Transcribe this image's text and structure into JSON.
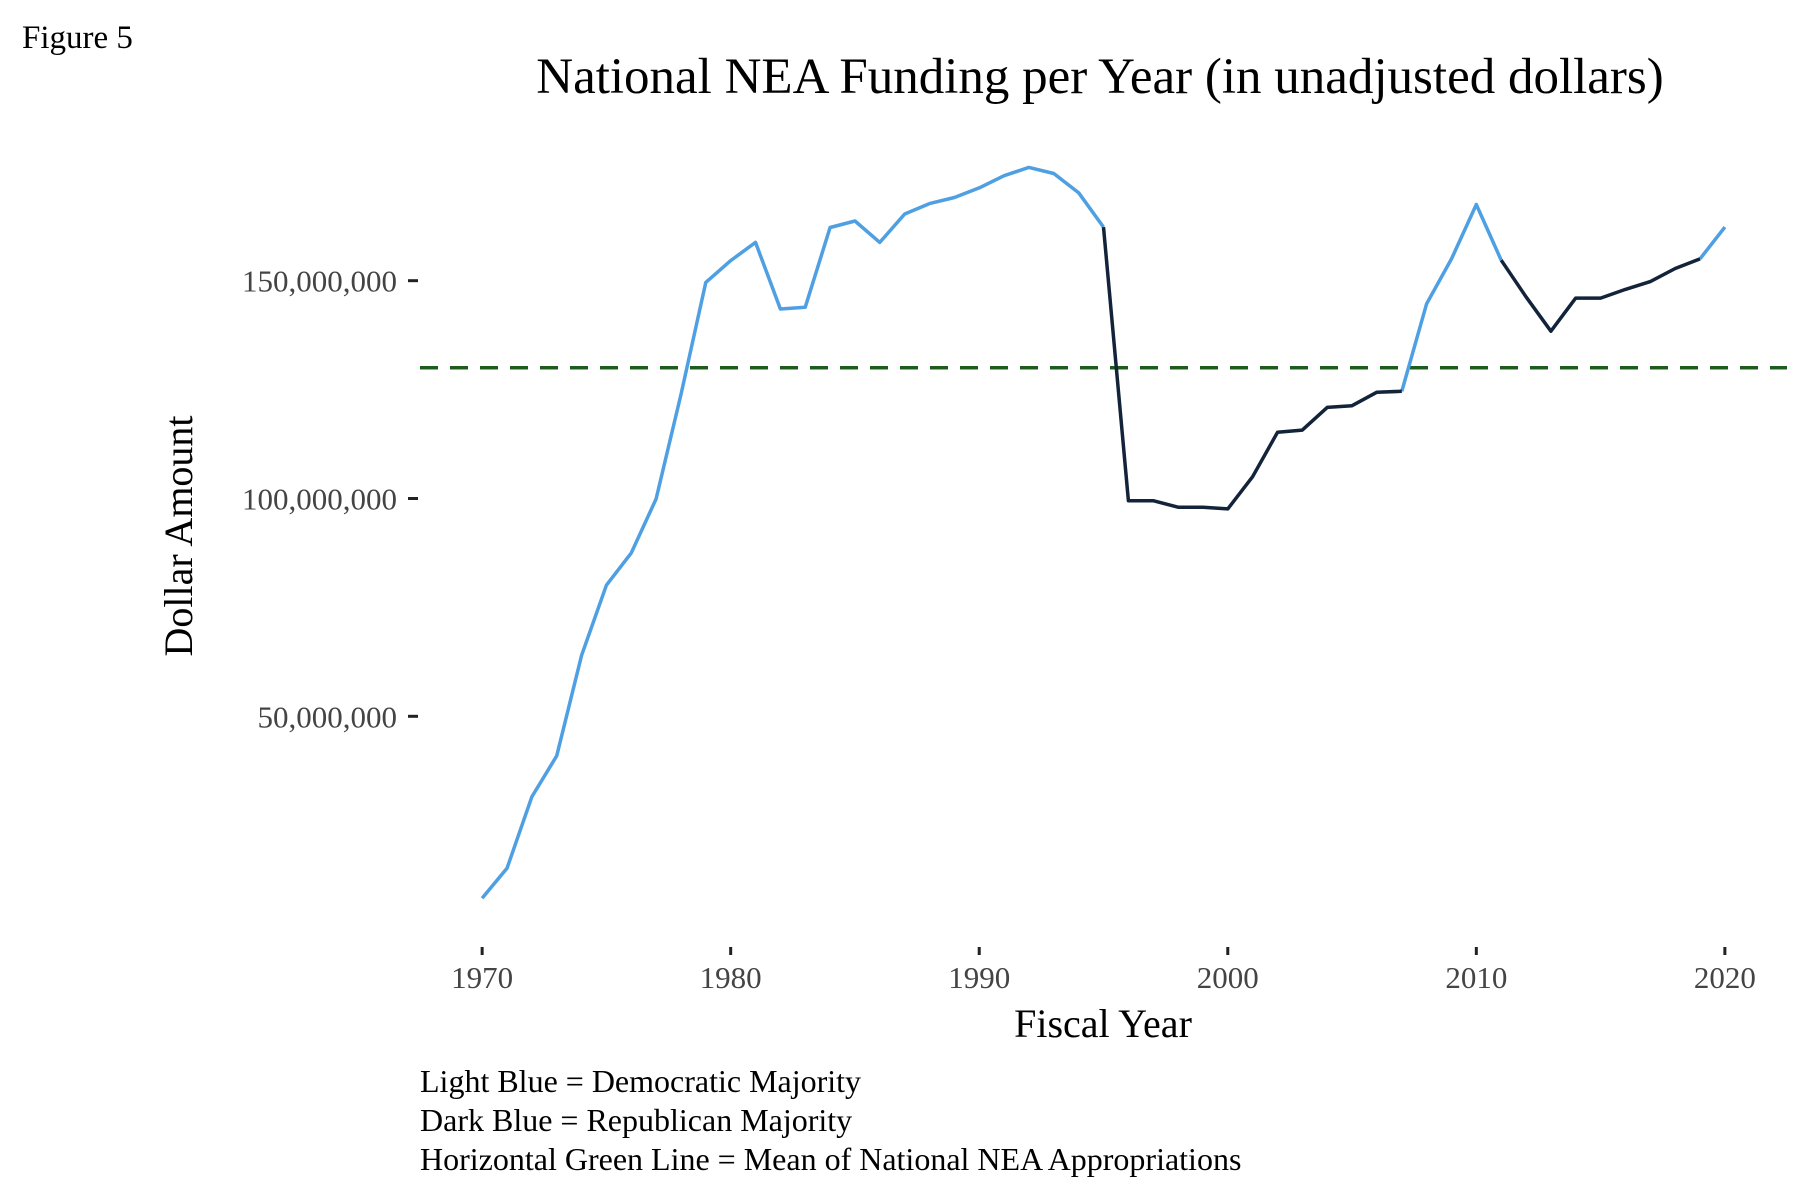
{
  "figure_label": "Figure 5",
  "captions": [
    "Light Blue = Democratic Majority",
    "Dark Blue = Republican Majority",
    "Horizontal Green Line = Mean of National NEA Appropriations"
  ],
  "colors": {
    "democratic": "#4f9fe3",
    "republican": "#13233a",
    "mean_line": "#1e5c1e",
    "tick": "#222222"
  },
  "chart_data": {
    "type": "line",
    "title": "National NEA Funding per Year (in unadjusted dollars)",
    "xlabel": "Fiscal Year",
    "ylabel": "Dollar Amount",
    "xlim": [
      1967.5,
      2022.5
    ],
    "ylim": [
      -2500000,
      180000000
    ],
    "xticks": [
      1970,
      1980,
      1990,
      2000,
      2010,
      2020
    ],
    "xtick_labels": [
      "1970",
      "1980",
      "1990",
      "2000",
      "2010",
      "2020"
    ],
    "yticks": [
      50000000,
      100000000,
      150000000
    ],
    "ytick_labels": [
      "50,000,000",
      "100,000,000",
      "150,000,000"
    ],
    "grid": false,
    "mean_line": 130000000,
    "series": [
      {
        "party": "Democratic Majority",
        "segments": [
          {
            "x": [
              1970,
              1971,
              1972,
              1973,
              1974,
              1975,
              1976,
              1977,
              1978,
              1979,
              1980,
              1981,
              1982,
              1983,
              1984,
              1985,
              1986,
              1987,
              1988,
              1989,
              1990,
              1991,
              1992,
              1993,
              1994,
              1995
            ],
            "y": [
              8250000,
              15100000,
              31500000,
              40900000,
              64000000,
              80100000,
              87500000,
              99900000,
              123900000,
              149600000,
              154600000,
              158800000,
              143500000,
              143900000,
              162200000,
              163700000,
              158800000,
              165300000,
              167700000,
              169100000,
              171300000,
              174100000,
              176000000,
              174600000,
              170200000,
              162300000
            ]
          },
          {
            "x": [
              2007,
              2008,
              2009,
              2010,
              2011
            ],
            "y": [
              124600000,
              144700000,
              155000000,
              167500000,
              154700000
            ]
          },
          {
            "x": [
              2019,
              2020
            ],
            "y": [
              155000000,
              162300000
            ]
          }
        ]
      },
      {
        "party": "Republican Majority",
        "segments": [
          {
            "x": [
              1995,
              1996,
              1997,
              1998,
              1999,
              2000,
              2001,
              2002,
              2003,
              2004,
              2005,
              2006,
              2007
            ],
            "y": [
              162300000,
              99500000,
              99500000,
              98000000,
              98000000,
              97600000,
              105000000,
              115200000,
              115700000,
              120900000,
              121300000,
              124400000,
              124600000
            ]
          },
          {
            "x": [
              2011,
              2012,
              2013,
              2014,
              2015,
              2016,
              2017,
              2018,
              2019
            ],
            "y": [
              154700000,
              146300000,
              138400000,
              146000000,
              146000000,
              148000000,
              149800000,
              152800000,
              155000000
            ]
          }
        ]
      }
    ]
  }
}
